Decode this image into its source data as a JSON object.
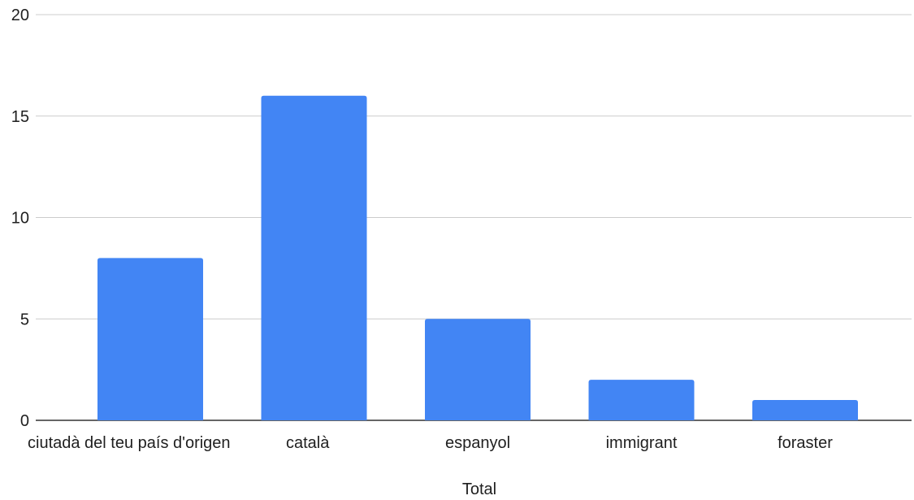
{
  "chart_data": {
    "type": "bar",
    "categories": [
      "ciutadà del teu país d'origen",
      "català",
      "espanyol",
      "immigrant",
      "foraster"
    ],
    "series": [
      {
        "values": [
          8,
          16,
          5,
          2,
          1
        ]
      }
    ],
    "title": "",
    "xlabel": "Total",
    "ylabel": "",
    "ylim": [
      0,
      20
    ],
    "yticks": [
      0,
      5,
      10,
      15,
      20
    ],
    "grid": true,
    "legend": "none",
    "bar_color": "#4285f4"
  }
}
